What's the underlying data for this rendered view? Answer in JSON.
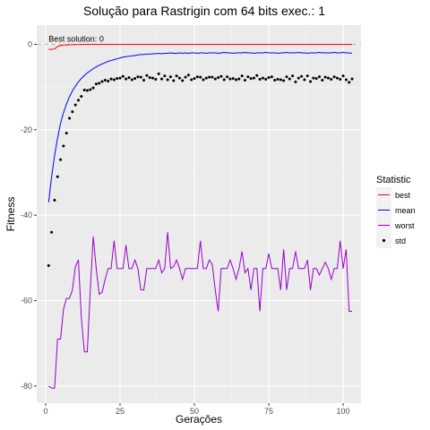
{
  "chart_data": {
    "type": "line",
    "title": "Solução para Rastrigin com 64 bits exec.: 1",
    "xlabel": "Gerações",
    "ylabel": "Fitness",
    "xlim": [
      -3,
      106
    ],
    "ylim": [
      -84,
      4.5
    ],
    "x_ticks": [
      0,
      25,
      50,
      75,
      100
    ],
    "y_ticks": [
      0,
      -20,
      -40,
      -60,
      -80
    ],
    "grid": true,
    "legend": {
      "title": "Statistic",
      "position": "right"
    },
    "reference_line": {
      "y": 0,
      "label": "Best solution: 0",
      "style": "dashed",
      "color": "#bbbbbb"
    },
    "series": [
      {
        "name": "best",
        "color": "#ff0000",
        "kind": "line",
        "x": [
          1,
          2,
          3,
          4,
          5,
          6,
          7,
          8,
          9,
          10,
          11,
          12,
          13,
          14,
          15,
          16,
          17,
          18,
          19,
          20,
          21,
          22,
          23,
          24,
          25,
          26,
          27,
          28,
          29,
          30,
          31,
          32,
          33,
          34,
          35,
          36,
          37,
          38,
          39,
          40,
          41,
          42,
          43,
          44,
          45,
          46,
          47,
          48,
          49,
          50,
          51,
          52,
          53,
          54,
          55,
          56,
          57,
          58,
          59,
          60,
          61,
          62,
          63,
          64,
          65,
          66,
          67,
          68,
          69,
          70,
          71,
          72,
          73,
          74,
          75,
          76,
          77,
          78,
          79,
          80,
          81,
          82,
          83,
          84,
          85,
          86,
          87,
          88,
          89,
          90,
          91,
          92,
          93,
          94,
          95,
          96,
          97,
          98,
          99,
          100,
          101,
          102,
          103
        ],
        "values": [
          -1.2,
          -1.2,
          -1.1,
          -0.5,
          -0.3,
          -0.2,
          -0.15,
          -0.1,
          -0.1,
          -0.05,
          -0.05,
          -0.03,
          -0.02,
          0,
          0,
          0,
          0,
          0,
          0,
          0,
          0,
          0,
          0,
          0,
          0,
          0,
          0,
          0,
          0,
          0,
          0,
          0,
          0,
          0,
          0,
          0,
          0,
          0,
          0,
          0,
          0,
          0,
          0,
          0,
          0,
          0,
          0,
          0,
          0,
          0,
          0,
          0,
          0,
          0,
          0,
          0,
          0,
          0,
          0,
          0,
          0,
          0,
          0,
          0,
          0,
          0,
          0,
          0,
          0,
          0,
          0,
          0,
          0,
          0,
          0,
          0,
          0,
          0,
          0,
          0,
          0,
          0,
          0,
          0,
          0,
          0,
          0,
          0,
          0,
          0,
          0,
          0,
          0,
          0,
          0,
          0,
          0,
          0,
          0,
          0,
          0,
          0,
          0
        ]
      },
      {
        "name": "mean",
        "color": "#0000ff",
        "kind": "line",
        "x": [
          1,
          2,
          3,
          4,
          5,
          6,
          7,
          8,
          9,
          10,
          11,
          12,
          13,
          14,
          15,
          16,
          17,
          18,
          19,
          20,
          21,
          22,
          23,
          24,
          25,
          26,
          27,
          28,
          29,
          30,
          31,
          32,
          33,
          34,
          35,
          36,
          37,
          38,
          39,
          40,
          41,
          42,
          43,
          44,
          45,
          46,
          47,
          48,
          49,
          50,
          51,
          52,
          53,
          54,
          55,
          56,
          57,
          58,
          59,
          60,
          61,
          62,
          63,
          64,
          65,
          66,
          67,
          68,
          69,
          70,
          71,
          72,
          73,
          74,
          75,
          76,
          77,
          78,
          79,
          80,
          81,
          82,
          83,
          84,
          85,
          86,
          87,
          88,
          89,
          90,
          91,
          92,
          93,
          94,
          95,
          96,
          97,
          98,
          99,
          100,
          101,
          102,
          103
        ],
        "values": [
          -37,
          -31,
          -26,
          -22,
          -18.5,
          -16,
          -14,
          -12.3,
          -10.9,
          -9.8,
          -8.8,
          -8.0,
          -7.3,
          -6.7,
          -6.2,
          -5.7,
          -5.3,
          -4.9,
          -4.6,
          -4.3,
          -4.0,
          -3.8,
          -3.6,
          -3.4,
          -3.2,
          -3.0,
          -2.9,
          -2.8,
          -2.7,
          -2.6,
          -2.5,
          -2.4,
          -2.4,
          -2.3,
          -2.3,
          -2.2,
          -2.2,
          -2.1,
          -2.2,
          -2.1,
          -2.1,
          -2.0,
          -2.1,
          -2.1,
          -2.0,
          -2.1,
          -2.0,
          -2.1,
          -2.0,
          -2.0,
          -2.1,
          -2.0,
          -2.0,
          -2.1,
          -2.0,
          -2.0,
          -2.0,
          -2.1,
          -2.0,
          -1.9,
          -2.0,
          -2.0,
          -2.1,
          -2.0,
          -2.0,
          -2.0,
          -1.9,
          -2.0,
          -2.0,
          -2.1,
          -2.0,
          -2.0,
          -2.0,
          -1.9,
          -2.0,
          -2.0,
          -2.0,
          -2.1,
          -2.0,
          -2.0,
          -1.9,
          -2.0,
          -2.0,
          -2.0,
          -1.9,
          -2.0,
          -2.0,
          -2.1,
          -2.0,
          -2.0,
          -2.0,
          -1.9,
          -2.0,
          -2.0,
          -2.0,
          -2.0,
          -1.9,
          -2.0,
          -2.0,
          -1.9,
          -2.0,
          -2.0,
          -2.1
        ]
      },
      {
        "name": "worst",
        "color": "#9900cc",
        "kind": "line",
        "x": [
          1,
          2,
          3,
          4,
          5,
          6,
          7,
          8,
          9,
          10,
          11,
          12,
          13,
          14,
          15,
          16,
          17,
          18,
          19,
          20,
          21,
          22,
          23,
          24,
          25,
          26,
          27,
          28,
          29,
          30,
          31,
          32,
          33,
          34,
          35,
          36,
          37,
          38,
          39,
          40,
          41,
          42,
          43,
          44,
          45,
          46,
          47,
          48,
          49,
          50,
          51,
          52,
          53,
          54,
          55,
          56,
          57,
          58,
          59,
          60,
          61,
          62,
          63,
          64,
          65,
          66,
          67,
          68,
          69,
          70,
          71,
          72,
          73,
          74,
          75,
          76,
          77,
          78,
          79,
          80,
          81,
          82,
          83,
          84,
          85,
          86,
          87,
          88,
          89,
          90,
          91,
          92,
          93,
          94,
          95,
          96,
          97,
          98,
          99,
          100,
          101,
          102,
          103
        ],
        "values": [
          -80,
          -80.5,
          -80.5,
          -69,
          -69,
          -62,
          -59.5,
          -59.5,
          -57.5,
          -52,
          -50.5,
          -64,
          -72,
          -72,
          -57.5,
          -45,
          -52.5,
          -58.5,
          -58,
          -55,
          -52.5,
          -52.5,
          -46,
          -52.5,
          -52.5,
          -52.5,
          -47,
          -52.5,
          -52.5,
          -50.5,
          -52.5,
          -57.5,
          -57.5,
          -52.5,
          -52.5,
          -52.5,
          -52.5,
          -50.5,
          -53.5,
          -52.5,
          -44,
          -52.5,
          -52,
          -50.5,
          -52.5,
          -55,
          -52.5,
          -52.5,
          -52.5,
          -52.5,
          -52.5,
          -46,
          -52.5,
          -52.5,
          -50.5,
          -51.5,
          -57.5,
          -62.5,
          -52.5,
          -52.5,
          -52.5,
          -50.5,
          -52.5,
          -55,
          -52.5,
          -48.5,
          -53.5,
          -52.5,
          -57.5,
          -52.5,
          -52.5,
          -62.5,
          -52.5,
          -52.5,
          -49,
          -52.5,
          -52.5,
          -52.5,
          -57.5,
          -48,
          -57.5,
          -52.5,
          -52.5,
          -48.5,
          -52.5,
          -52.5,
          -52.5,
          -50.5,
          -57.5,
          -52.5,
          -52.5,
          -54,
          -52.5,
          -51,
          -52.5,
          -55,
          -52.5,
          -52.5,
          -46,
          -52.5,
          -48,
          -62.5,
          -62.5
        ]
      },
      {
        "name": "std",
        "color": "#000000",
        "kind": "points",
        "x": [
          1,
          2,
          3,
          4,
          5,
          6,
          7,
          8,
          9,
          10,
          11,
          12,
          13,
          14,
          15,
          16,
          17,
          18,
          19,
          20,
          21,
          22,
          23,
          24,
          25,
          26,
          27,
          28,
          29,
          30,
          31,
          32,
          33,
          34,
          35,
          36,
          37,
          38,
          39,
          40,
          41,
          42,
          43,
          44,
          45,
          46,
          47,
          48,
          49,
          50,
          51,
          52,
          53,
          54,
          55,
          56,
          57,
          58,
          59,
          60,
          61,
          62,
          63,
          64,
          65,
          66,
          67,
          68,
          69,
          70,
          71,
          72,
          73,
          74,
          75,
          76,
          77,
          78,
          79,
          80,
          81,
          82,
          83,
          84,
          85,
          86,
          87,
          88,
          89,
          90,
          91,
          92,
          93,
          94,
          95,
          96,
          97,
          98,
          99,
          100,
          101,
          102,
          103
        ],
        "values": [
          -51.8,
          -44,
          -36.5,
          -31,
          -27,
          -23.8,
          -20.8,
          -17.3,
          -15.8,
          -14.2,
          -13.1,
          -12.2,
          -10.7,
          -10.8,
          -10.6,
          -10.2,
          -9.3,
          -9.1,
          -8.7,
          -8.4,
          -8.6,
          -8.1,
          -8.3,
          -8.0,
          -7.9,
          -7.5,
          -8.1,
          -7.8,
          -8.3,
          -8.0,
          -7.6,
          -7.7,
          -8.4,
          -7.3,
          -7.8,
          -7.9,
          -8.2,
          -6.9,
          -8.1,
          -7.4,
          -8.3,
          -7.6,
          -8.5,
          -7.4,
          -7.9,
          -8.5,
          -7.7,
          -7.2,
          -8.3,
          -8.0,
          -7.6,
          -7.7,
          -8.3,
          -7.9,
          -7.7,
          -7.7,
          -8.1,
          -7.8,
          -7.5,
          -8.3,
          -7.6,
          -8.1,
          -8.0,
          -8.3,
          -8.1,
          -7.4,
          -8.4,
          -7.6,
          -8.0,
          -7.9,
          -7.3,
          -8.2,
          -7.9,
          -8.2,
          -7.8,
          -7.6,
          -8.4,
          -8.2,
          -8.3,
          -8.5,
          -7.6,
          -8.1,
          -7.4,
          -8.8,
          -7.9,
          -7.5,
          -8.3,
          -7.4,
          -8.7,
          -7.9,
          -8.0,
          -7.6,
          -8.4,
          -7.7,
          -7.9,
          -8.2,
          -7.6,
          -7.9,
          -8.2,
          -7.4,
          -8.3,
          -8.9,
          -8.1
        ]
      }
    ]
  }
}
